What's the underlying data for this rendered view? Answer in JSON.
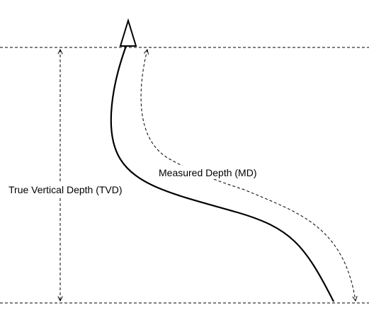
{
  "labels": {
    "md": "Measured Depth (MD)",
    "tvd": "True Vertical Depth (TVD)"
  },
  "colors": {
    "line": "#000000",
    "background": "#ffffff"
  }
}
